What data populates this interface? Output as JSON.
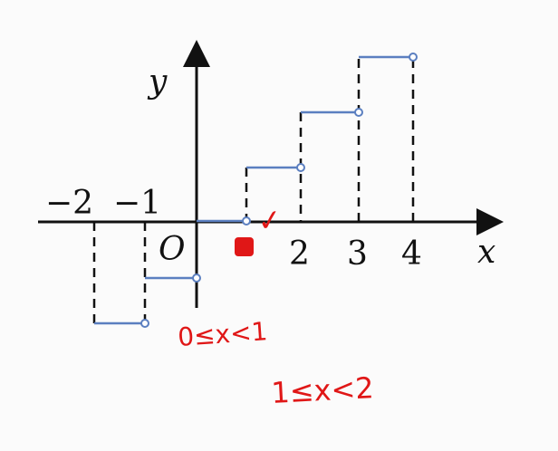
{
  "diagram": {
    "labels": {
      "y": "y",
      "x": "x",
      "origin": "O",
      "tick_neg2": "−2",
      "tick_neg1": "−1",
      "tick_2": "2",
      "tick_3": "3",
      "tick_4": "4"
    },
    "annotations": {
      "range_1": "0≤x<1",
      "range_2": "1≤x<2",
      "check": "✓"
    },
    "colors": {
      "step": "#5b7fc0",
      "axis": "#111111",
      "annotation": "#e01717"
    }
  }
}
